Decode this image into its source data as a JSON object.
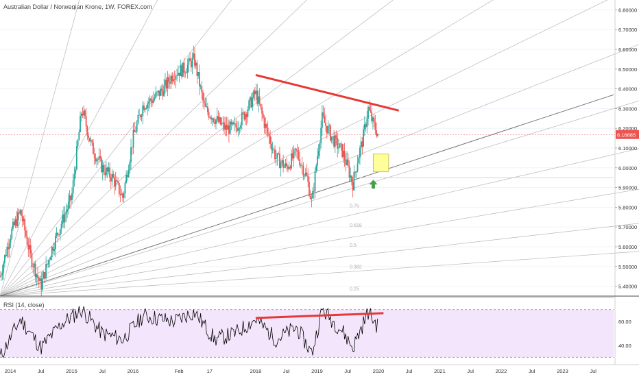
{
  "header": {
    "title": "Australian Dollar / Norwegian Krone, 1W, FOREX.com"
  },
  "price_axis": {
    "ticks": [
      "6.80000",
      "6.70000",
      "6.60000",
      "6.50000",
      "6.40000",
      "6.30000",
      "6.20000",
      "6.10000",
      "6.00000",
      "5.90000",
      "5.80000",
      "5.70000",
      "5.60000",
      "5.50000",
      "5.40000"
    ],
    "last_price_label": "6.16685",
    "last_price": 6.16685,
    "last_price_color": "#ef5350"
  },
  "rsi_pane": {
    "title": "RSI (14, close)",
    "ticks": [
      "60.00",
      "40.00"
    ],
    "upper_band": 70,
    "lower_band": 30,
    "band_color": "#f3e5fb"
  },
  "time_axis": {
    "labels": [
      "2014",
      "Jul",
      "2015",
      "Jul",
      "2016",
      "Feb",
      "17",
      "2018",
      "Jul",
      "2019",
      "Jul",
      "2020",
      "Jul",
      "2021",
      "Jul",
      "2022",
      "Jul",
      "2023",
      "Jul"
    ]
  },
  "fib_labels": [
    "0.75",
    "0.618",
    "0.5",
    "0.382",
    "0.25"
  ],
  "colors": {
    "up_candle": "#26a69a",
    "down_candle": "#ef5350",
    "trendline": "#e53935",
    "target_box_fill": "#ffff99",
    "target_box_border": "#c9c26a",
    "arrow": "#43a047",
    "fan_line": "#b8b8b8",
    "rsi_line": "#000000"
  },
  "chart_data": {
    "type": "candlestick",
    "title": "Australian Dollar / Norwegian Krone, 1W, FOREX.com",
    "timeframe": "1W",
    "ylim": [
      5.35,
      6.85
    ],
    "rsi_ylim": [
      25,
      75
    ],
    "x_range": [
      "2013-11",
      "2023-11"
    ],
    "price_path": [
      [
        "2013-11",
        5.45
      ],
      [
        "2014-01",
        5.66
      ],
      [
        "2014-03",
        5.78
      ],
      [
        "2014-05",
        5.55
      ],
      [
        "2014-07",
        5.4
      ],
      [
        "2014-09",
        5.58
      ],
      [
        "2014-11",
        5.72
      ],
      [
        "2015-01",
        5.85
      ],
      [
        "2015-03",
        6.3
      ],
      [
        "2015-05",
        6.1
      ],
      [
        "2015-07",
        6.0
      ],
      [
        "2015-09",
        5.95
      ],
      [
        "2015-11",
        5.85
      ],
      [
        "2016-01",
        6.15
      ],
      [
        "2016-03",
        6.32
      ],
      [
        "2016-05",
        6.35
      ],
      [
        "2016-07",
        6.4
      ],
      [
        "2016-09",
        6.48
      ],
      [
        "2016-11",
        6.5
      ],
      [
        "2017-01",
        6.55
      ],
      [
        "2017-03",
        6.3
      ],
      [
        "2017-05",
        6.25
      ],
      [
        "2017-07",
        6.2
      ],
      [
        "2017-09",
        6.2
      ],
      [
        "2017-11",
        6.28
      ],
      [
        "2018-01",
        6.38
      ],
      [
        "2018-03",
        6.2
      ],
      [
        "2018-05",
        6.05
      ],
      [
        "2018-07",
        6.0
      ],
      [
        "2018-09",
        6.08
      ],
      [
        "2018-11",
        5.95
      ],
      [
        "2018-12",
        5.82
      ],
      [
        "2019-01",
        6.05
      ],
      [
        "2019-02",
        6.25
      ],
      [
        "2019-04",
        6.15
      ],
      [
        "2019-06",
        6.08
      ],
      [
        "2019-08",
        5.92
      ],
      [
        "2019-09",
        6.05
      ],
      [
        "2019-10",
        6.15
      ],
      [
        "2019-11",
        6.3
      ],
      [
        "2019-12",
        6.22
      ],
      [
        "2020-01",
        6.16685
      ]
    ],
    "rsi_path": [
      [
        "2013-11",
        30
      ],
      [
        "2014-03",
        62
      ],
      [
        "2014-07",
        38
      ],
      [
        "2014-11",
        58
      ],
      [
        "2015-03",
        70
      ],
      [
        "2015-07",
        50
      ],
      [
        "2015-11",
        45
      ],
      [
        "2016-03",
        65
      ],
      [
        "2016-09",
        60
      ],
      [
        "2017-01",
        68
      ],
      [
        "2017-05",
        45
      ],
      [
        "2017-09",
        50
      ],
      [
        "2018-01",
        62
      ],
      [
        "2018-05",
        45
      ],
      [
        "2018-09",
        55
      ],
      [
        "2018-12",
        33
      ],
      [
        "2019-02",
        70
      ],
      [
        "2019-06",
        52
      ],
      [
        "2019-08",
        38
      ],
      [
        "2019-11",
        68
      ],
      [
        "2020-01",
        55
      ]
    ],
    "drawings": {
      "price_trendline": {
        "from": [
          "2018-01",
          6.47
        ],
        "to": [
          "2020-05",
          6.29
        ]
      },
      "rsi_trendline": {
        "from": [
          "2018-01",
          63
        ],
        "to": [
          "2020-02",
          67
        ]
      },
      "fan_origin": [
        "2013-11",
        5.35
      ],
      "target_zone": {
        "x": [
          "2019-12",
          "2020-03"
        ],
        "y": [
          5.98,
          6.07
        ]
      },
      "arrow": {
        "x": "2019-12",
        "y": 5.94,
        "direction": "up"
      }
    }
  }
}
